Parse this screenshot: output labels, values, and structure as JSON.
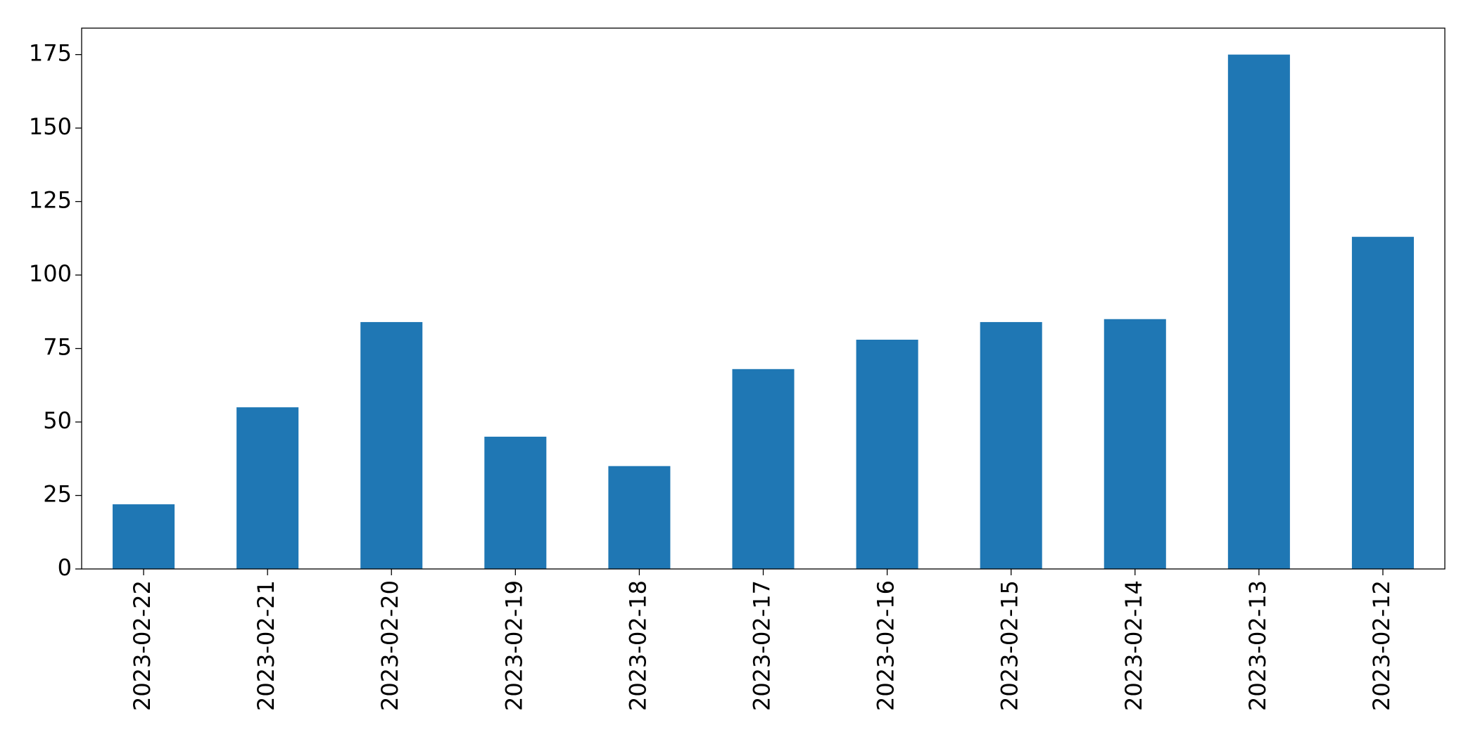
{
  "chart_data": {
    "type": "bar",
    "categories": [
      "2023-02-22",
      "2023-02-21",
      "2023-02-20",
      "2023-02-19",
      "2023-02-18",
      "2023-02-17",
      "2023-02-16",
      "2023-02-15",
      "2023-02-14",
      "2023-02-13",
      "2023-02-12"
    ],
    "values": [
      22,
      55,
      84,
      45,
      35,
      68,
      78,
      84,
      85,
      175,
      113
    ],
    "color": "#1f77b4",
    "ylim": [
      0,
      184
    ],
    "yticks": [
      0,
      25,
      50,
      75,
      100,
      125,
      150,
      175
    ],
    "grid": false
  }
}
